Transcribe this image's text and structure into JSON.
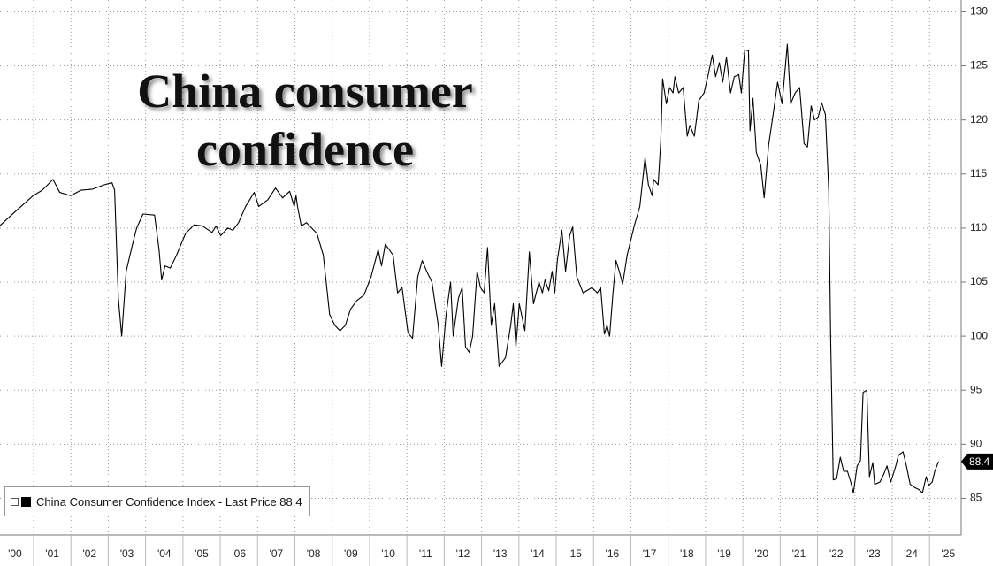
{
  "chart_data": {
    "type": "line",
    "title": "China consumer confidence",
    "x": [
      2000.09,
      2000.5,
      2000.99,
      2001.23,
      2001.52,
      2001.7,
      2001.99,
      2002.27,
      2002.58,
      2002.89,
      2003.1,
      2003.17,
      2003.27,
      2003.36,
      2003.48,
      2003.65,
      2003.76,
      2003.93,
      2004.24,
      2004.36,
      2004.43,
      2004.52,
      2004.66,
      2004.83,
      2005.07,
      2005.3,
      2005.52,
      2005.78,
      2005.89,
      2006.01,
      2006.2,
      2006.34,
      2006.49,
      2006.68,
      2006.91,
      2007.03,
      2007.27,
      2007.48,
      2007.67,
      2007.86,
      2007.98,
      2008.03,
      2008.07,
      2008.17,
      2008.31,
      2008.45,
      2008.59,
      2008.76,
      2008.93,
      2009.07,
      2009.21,
      2009.35,
      2009.49,
      2009.66,
      2009.85,
      2010.04,
      2010.23,
      2010.32,
      2010.42,
      2010.63,
      2010.75,
      2010.87,
      2011.03,
      2011.15,
      2011.29,
      2011.41,
      2011.53,
      2011.67,
      2011.84,
      2011.93,
      2012.05,
      2012.17,
      2012.24,
      2012.38,
      2012.48,
      2012.57,
      2012.67,
      2012.76,
      2012.88,
      2012.97,
      2013.07,
      2013.16,
      2013.26,
      2013.35,
      2013.47,
      2013.64,
      2013.78,
      2013.85,
      2013.92,
      2014.01,
      2014.16,
      2014.28,
      2014.39,
      2014.54,
      2014.63,
      2014.7,
      2014.8,
      2014.89,
      2014.96,
      2015.03,
      2015.15,
      2015.25,
      2015.36,
      2015.44,
      2015.55,
      2015.72,
      2015.96,
      2016.1,
      2016.19,
      2016.29,
      2016.36,
      2016.43,
      2016.52,
      2016.6,
      2016.69,
      2016.78,
      2016.9,
      2017.09,
      2017.24,
      2017.38,
      2017.47,
      2017.57,
      2017.61,
      2017.73,
      2017.8,
      2017.85,
      2017.95,
      2018.04,
      2018.13,
      2018.18,
      2018.28,
      2018.4,
      2018.51,
      2018.58,
      2018.7,
      2018.82,
      2018.96,
      2019.06,
      2019.18,
      2019.27,
      2019.37,
      2019.46,
      2019.56,
      2019.67,
      2019.77,
      2019.89,
      2019.96,
      2020.05,
      2020.15,
      2020.19,
      2020.27,
      2020.36,
      2020.48,
      2020.57,
      2020.69,
      2020.81,
      2020.93,
      2021.05,
      2021.19,
      2021.28,
      2021.4,
      2021.52,
      2021.64,
      2021.73,
      2021.83,
      2021.92,
      2022.02,
      2022.11,
      2022.21,
      2022.3,
      2022.35,
      2022.42,
      2022.51,
      2022.61,
      2022.7,
      2022.8,
      2022.89,
      2022.96,
      2023.06,
      2023.15,
      2023.22,
      2023.32,
      2023.39,
      2023.48,
      2023.53,
      2023.67,
      2023.77,
      2023.86,
      2023.96,
      2024.08,
      2024.17,
      2024.29,
      2024.38,
      2024.48,
      2024.6,
      2024.72,
      2024.81,
      2024.91,
      2024.98,
      2025.07,
      2025.14,
      2025.24
    ],
    "series": [
      {
        "name": "China Consumer Confidence Index - Last Price 88.4",
        "color": "#000000",
        "values": [
          110.2,
          111.5,
          113,
          113.5,
          114.5,
          113.3,
          113,
          113.5,
          113.6,
          114,
          114.2,
          113.5,
          103.5,
          100,
          106,
          108.5,
          110,
          111.3,
          111.2,
          108,
          105.2,
          106.5,
          106.3,
          107.5,
          109.5,
          110.3,
          110.2,
          109.6,
          110.2,
          109.3,
          110,
          109.8,
          110.5,
          112,
          113.3,
          112,
          112.6,
          113.7,
          112.8,
          113.4,
          112,
          113,
          112,
          110.2,
          110.5,
          110,
          109.5,
          107.5,
          102,
          101,
          100.5,
          101,
          102.5,
          103.3,
          103.8,
          105.5,
          108,
          106.5,
          108.5,
          107.5,
          104,
          104.5,
          100.3,
          99.8,
          105.5,
          107,
          106,
          105,
          101,
          97.2,
          102,
          105,
          100,
          103.5,
          104.5,
          99,
          98.5,
          100,
          106,
          104.5,
          104,
          108.2,
          101,
          103,
          97.2,
          98,
          101,
          103,
          99,
          103,
          100.5,
          107.8,
          103,
          105,
          104,
          105.2,
          104.2,
          106,
          104,
          107,
          109.8,
          106,
          109.3,
          110.1,
          105.5,
          104,
          104.5,
          104,
          104.5,
          100.2,
          101,
          100,
          104,
          107,
          106,
          104.8,
          107.5,
          110.2,
          112,
          116.5,
          114,
          113,
          114.5,
          114,
          118,
          123.8,
          121.5,
          123,
          122.5,
          124,
          122.5,
          123,
          118.5,
          119.5,
          118.5,
          121.8,
          122.5,
          124,
          126,
          124,
          125.3,
          123.5,
          125.8,
          122.5,
          124,
          124.2,
          122.5,
          126.5,
          126.4,
          119,
          122,
          117,
          115.8,
          112.8,
          117.7,
          120.5,
          123.5,
          121.5,
          127,
          121.5,
          122.5,
          123,
          117.8,
          117.5,
          121.3,
          120,
          120.3,
          121.6,
          120.5,
          113.5,
          100,
          86.7,
          86.8,
          88.8,
          87.5,
          87.5,
          86.5,
          85.5,
          88,
          88.5,
          94.8,
          95,
          87,
          88.3,
          86.3,
          86.5,
          87.2,
          88,
          86.5,
          87.8,
          89,
          89.3,
          88,
          86.3,
          86,
          85.8,
          85.5,
          87,
          86.2,
          86.5,
          87.5,
          88.4
        ]
      }
    ],
    "xlim": [
      2000.1,
      2025.8
    ],
    "xticks": [
      {
        "value": 2000,
        "label": "'00"
      },
      {
        "value": 2001,
        "label": "'01"
      },
      {
        "value": 2002,
        "label": "'02"
      },
      {
        "value": 2003,
        "label": "'03"
      },
      {
        "value": 2004,
        "label": "'04"
      },
      {
        "value": 2005,
        "label": "'05"
      },
      {
        "value": 2006,
        "label": "'06"
      },
      {
        "value": 2007,
        "label": "'07"
      },
      {
        "value": 2008,
        "label": "'08"
      },
      {
        "value": 2009,
        "label": "'09"
      },
      {
        "value": 2010,
        "label": "'10"
      },
      {
        "value": 2011,
        "label": "'11"
      },
      {
        "value": 2012,
        "label": "'12"
      },
      {
        "value": 2013,
        "label": "'13"
      },
      {
        "value": 2014,
        "label": "'14"
      },
      {
        "value": 2015,
        "label": "'15"
      },
      {
        "value": 2016,
        "label": "'16"
      },
      {
        "value": 2017,
        "label": "'17"
      },
      {
        "value": 2018,
        "label": "'18"
      },
      {
        "value": 2019,
        "label": "'19"
      },
      {
        "value": 2020,
        "label": "'20"
      },
      {
        "value": 2021,
        "label": "'21"
      },
      {
        "value": 2022,
        "label": "'22"
      },
      {
        "value": 2023,
        "label": "'23"
      },
      {
        "value": 2024,
        "label": "'24"
      },
      {
        "value": 2025,
        "label": "'25"
      }
    ],
    "ylim": [
      81.6,
      131.1
    ],
    "yticks": [
      85,
      90,
      95,
      100,
      105,
      110,
      115,
      120,
      125,
      130
    ],
    "grid": true,
    "legend": "lower left"
  }
}
